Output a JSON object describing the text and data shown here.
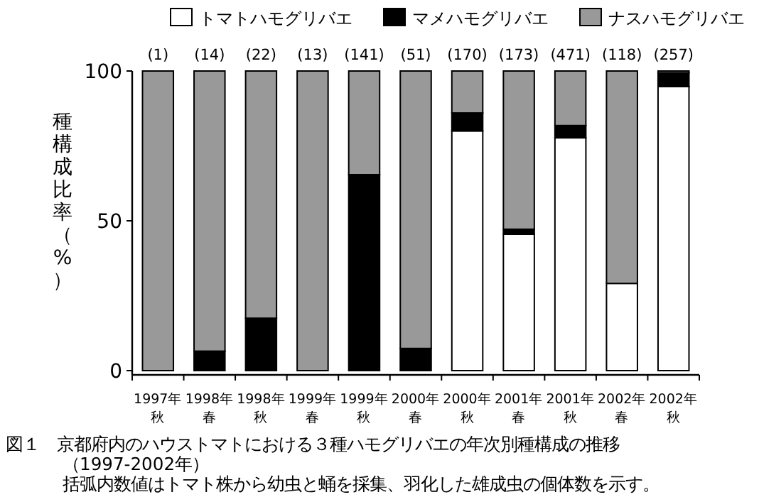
{
  "chart_data": {
    "type": "bar",
    "stacked": true,
    "legend": "top",
    "grid": false,
    "ylabel": "種構成比率（%）",
    "categories": [
      "1997年秋",
      "1998年春",
      "1998年秋",
      "1999年春",
      "1999年秋",
      "2000年春",
      "2000年秋",
      "2001年春",
      "2001年秋",
      "2002年春",
      "2002年秋"
    ],
    "series": [
      {
        "name": "トマトハモグリバエ",
        "color": "#ffffff",
        "values": [
          0,
          0,
          0,
          0,
          0,
          0,
          80,
          45.5,
          77.7,
          29.1,
          94.8
        ]
      },
      {
        "name": "マメハモグリバエ",
        "color": "#000000",
        "values": [
          0,
          6.5,
          17.5,
          0,
          65.4,
          7.4,
          6,
          1.7,
          4.1,
          0,
          4.6
        ]
      },
      {
        "name": "ナスハモグリバエ",
        "color": "#999999",
        "values": [
          100,
          93.5,
          82.5,
          100,
          34.6,
          92.6,
          14,
          52.8,
          18.2,
          70.9,
          0.6
        ]
      }
    ],
    "ylim": [
      0,
      100
    ],
    "yticks": [
      0,
      50,
      100
    ],
    "annotations": [
      "(1)",
      "(14)",
      "(22)",
      "(13)",
      "(141)",
      "(51)",
      "(170)",
      "(173)",
      "(471)",
      "(118)",
      "(257)",
      "図１　京都府内のハウストマトにおける３種ハモグリバエの年次別種構成の推移",
      "（1997-2002年）",
      "括弧内数値はトマト株から幼虫と蛹を採集、羽化した雄成虫の個体数を示す。"
    ]
  }
}
